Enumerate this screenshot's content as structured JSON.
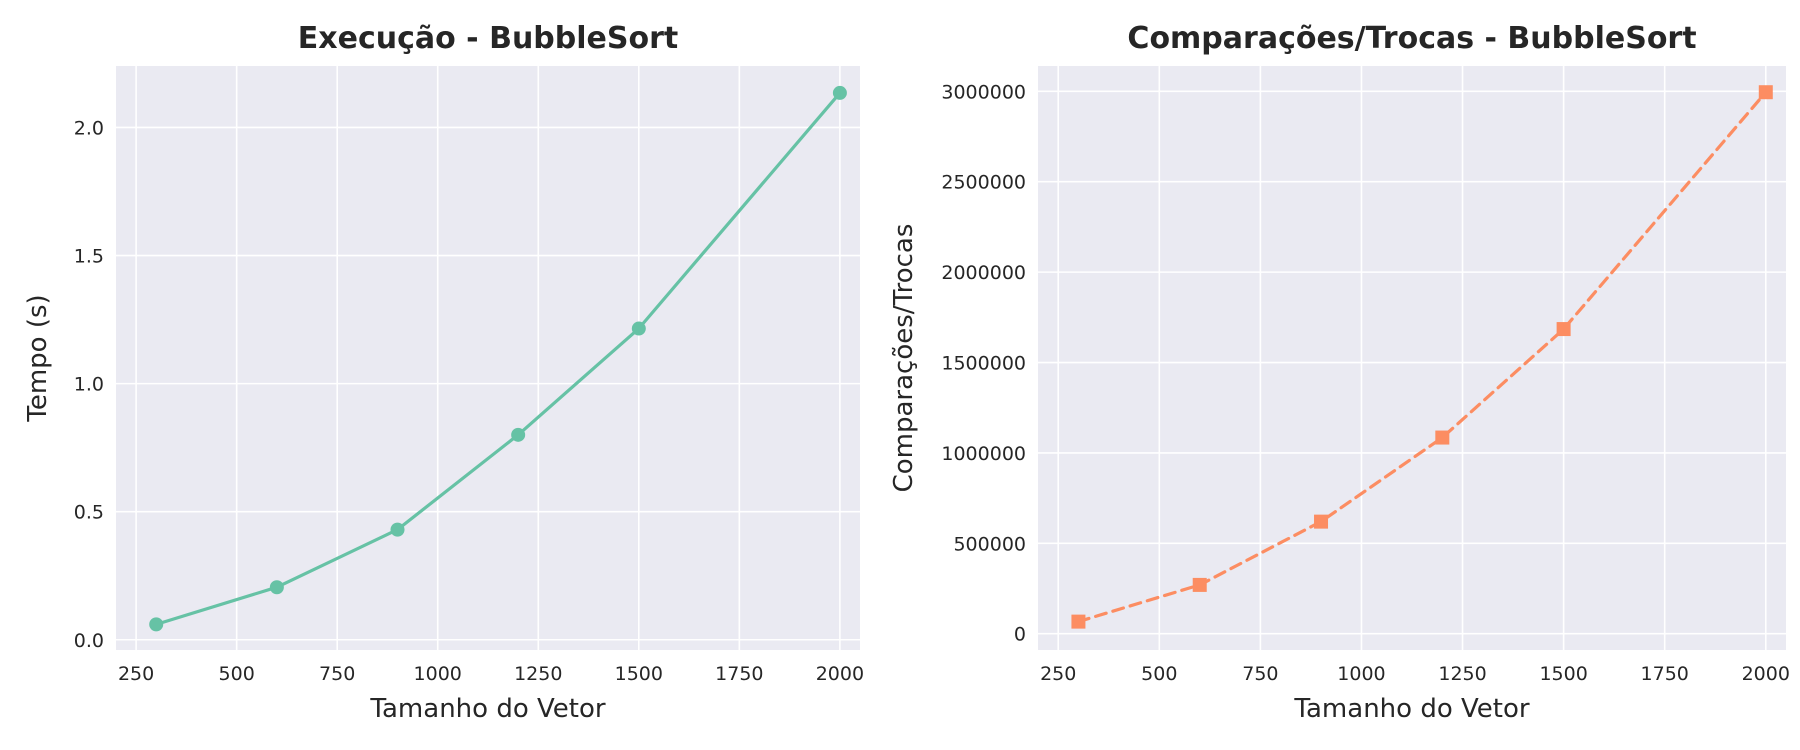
{
  "chart_data": [
    {
      "type": "line",
      "title": "Execução - BubbleSort",
      "xlabel": "Tamanho do Vetor",
      "ylabel": "Tempo (s)",
      "xlim": [
        200,
        2050
      ],
      "ylim": [
        -0.04,
        2.24
      ],
      "xticks": [
        250,
        500,
        750,
        1000,
        1250,
        1500,
        1750,
        2000
      ],
      "yticks": [
        0.0,
        0.5,
        1.0,
        1.5,
        2.0
      ],
      "ytick_labels": [
        "0.0",
        "0.5",
        "1.0",
        "1.5",
        "2.0"
      ],
      "grid": true,
      "series": [
        {
          "x": [
            300,
            600,
            900,
            1200,
            1500,
            2000
          ],
          "y": [
            0.06,
            0.205,
            0.43,
            0.8,
            1.215,
            2.135
          ],
          "color": "#66c2a5",
          "marker": "circle",
          "linestyle": "solid"
        }
      ]
    },
    {
      "type": "line",
      "title": "Comparações/Trocas - BubbleSort",
      "xlabel": "Tamanho do Vetor",
      "ylabel": "Comparações/Trocas",
      "xlim": [
        200,
        2050
      ],
      "ylim": [
        -90000,
        3140000
      ],
      "xticks": [
        250,
        500,
        750,
        1000,
        1250,
        1500,
        1750,
        2000
      ],
      "yticks": [
        0,
        500000,
        1000000,
        1500000,
        2000000,
        2500000,
        3000000
      ],
      "ytick_labels": [
        "0",
        "500000",
        "1000000",
        "1500000",
        "2000000",
        "2500000",
        "3000000"
      ],
      "grid": true,
      "series": [
        {
          "x": [
            300,
            600,
            900,
            1200,
            1500,
            2000
          ],
          "y": [
            67000,
            270000,
            620000,
            1085000,
            1685000,
            2995000
          ],
          "color": "#fc8d62",
          "marker": "square",
          "linestyle": "dashed"
        }
      ]
    }
  ]
}
